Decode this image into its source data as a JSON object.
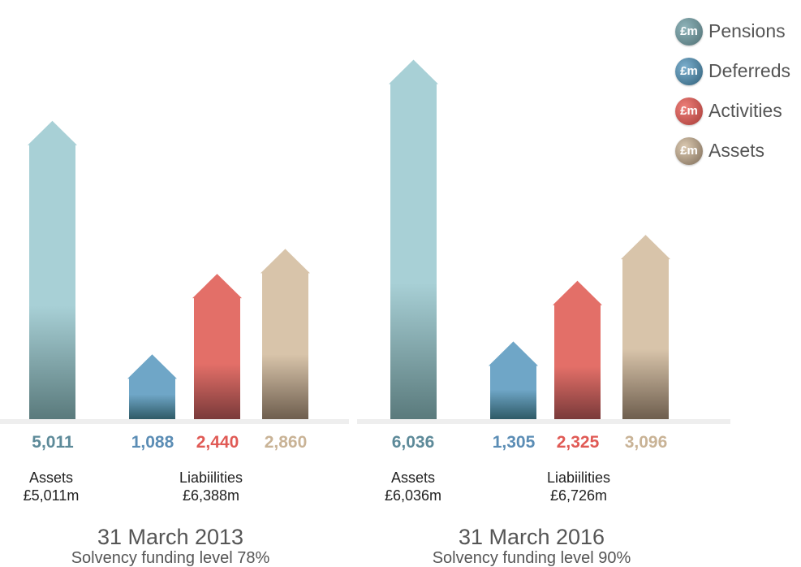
{
  "legend": [
    {
      "icon_text": "£m",
      "label": "Pensions",
      "color": "#a8d0d6"
    },
    {
      "icon_text": "£m",
      "label": "Deferreds",
      "color": "#6fa6c7"
    },
    {
      "icon_text": "£m",
      "label": "Activities",
      "color": "#e36f68"
    },
    {
      "icon_text": "£m",
      "label": "Assets",
      "color": "#d8c4aa"
    }
  ],
  "chart_data": [
    {
      "type": "bar",
      "title": "31 March 2013",
      "subtitle": "Solvency funding level 78%",
      "categories": [
        "Assets",
        "Deferreds",
        "Activities",
        "Pensions"
      ],
      "values": [
        5011,
        1088,
        2440,
        2860
      ],
      "value_labels": [
        "5,011",
        "1,088",
        "2,440",
        "2,860"
      ],
      "group_labels": [
        {
          "name": "Assets",
          "total": "£5,011m"
        },
        {
          "name": "Liabiilities",
          "total": "£6,388m"
        }
      ]
    },
    {
      "type": "bar",
      "title": "31 March 2016",
      "subtitle": "Solvency funding level 90%",
      "categories": [
        "Assets",
        "Deferreds",
        "Activities",
        "Pensions"
      ],
      "values": [
        6036,
        1305,
        2325,
        3096
      ],
      "value_labels": [
        "6,036",
        "1,305",
        "2,325",
        "3,096"
      ],
      "group_labels": [
        {
          "name": "Assets",
          "total": "£6,036m"
        },
        {
          "name": "Liabiilities",
          "total": "£6,726m"
        }
      ]
    }
  ],
  "colors": {
    "assets_bar": "#a8d0d6",
    "deferreds": "#6fa6c7",
    "activities": "#e36f68",
    "pensions_bar": "#d8c4aa",
    "value_assets": "#5d8a99",
    "value_deferreds": "#5b8db5",
    "value_activities": "#e05a55",
    "value_pensions": "#c9b396"
  }
}
